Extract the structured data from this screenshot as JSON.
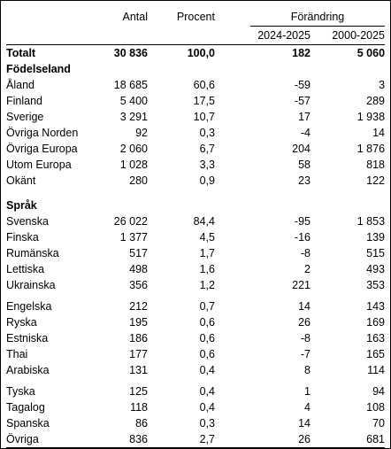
{
  "headers": {
    "antal": "Antal",
    "procent": "Procent",
    "forandring": "Förändring",
    "period1": "2024-2025",
    "period2": "2000-2025"
  },
  "total": {
    "label": "Totalt",
    "antal": "30 836",
    "procent": "100,0",
    "c1": "182",
    "c2": "5 060"
  },
  "sections": [
    {
      "title": "Födelseland",
      "groups": [
        [
          {
            "label": "Åland",
            "antal": "18 685",
            "procent": "60,6",
            "c1": "-59",
            "c2": "3"
          },
          {
            "label": "Finland",
            "antal": "5 400",
            "procent": "17,5",
            "c1": "-57",
            "c2": "289"
          },
          {
            "label": "Sverige",
            "antal": "3 291",
            "procent": "10,7",
            "c1": "17",
            "c2": "1 938"
          },
          {
            "label": "Övriga Norden",
            "antal": "92",
            "procent": "0,3",
            "c1": "-4",
            "c2": "14"
          },
          {
            "label": "Övriga Europa",
            "antal": "2 060",
            "procent": "6,7",
            "c1": "204",
            "c2": "1 876"
          },
          {
            "label": "Utom Europa",
            "antal": "1 028",
            "procent": "3,3",
            "c1": "58",
            "c2": "818"
          },
          {
            "label": "Okänt",
            "antal": "280",
            "procent": "0,9",
            "c1": "23",
            "c2": "122"
          }
        ]
      ]
    },
    {
      "title": "Språk",
      "groups": [
        [
          {
            "label": "Svenska",
            "antal": "26 022",
            "procent": "84,4",
            "c1": "-95",
            "c2": "1 853"
          },
          {
            "label": "Finska",
            "antal": "1 377",
            "procent": "4,5",
            "c1": "-16",
            "c2": "139"
          },
          {
            "label": "Rumänska",
            "antal": "517",
            "procent": "1,7",
            "c1": "-8",
            "c2": "515"
          },
          {
            "label": "Lettiska",
            "antal": "498",
            "procent": "1,6",
            "c1": "2",
            "c2": "493"
          },
          {
            "label": "Ukrainska",
            "antal": "356",
            "procent": "1,2",
            "c1": "221",
            "c2": "353"
          }
        ],
        [
          {
            "label": "Engelska",
            "antal": "212",
            "procent": "0,7",
            "c1": "14",
            "c2": "143"
          },
          {
            "label": "Ryska",
            "antal": "195",
            "procent": "0,6",
            "c1": "26",
            "c2": "169"
          },
          {
            "label": "Estniska",
            "antal": "186",
            "procent": "0,6",
            "c1": "-8",
            "c2": "163"
          },
          {
            "label": "Thai",
            "antal": "177",
            "procent": "0,6",
            "c1": "-7",
            "c2": "165"
          },
          {
            "label": "Arabiska",
            "antal": "131",
            "procent": "0,4",
            "c1": "8",
            "c2": "114"
          }
        ],
        [
          {
            "label": "Tyska",
            "antal": "125",
            "procent": "0,4",
            "c1": "1",
            "c2": "94"
          },
          {
            "label": "Tagalog",
            "antal": "118",
            "procent": "0,4",
            "c1": "4",
            "c2": "108"
          },
          {
            "label": "Spanska",
            "antal": "86",
            "procent": "0,3",
            "c1": "14",
            "c2": "70"
          },
          {
            "label": "Övriga",
            "antal": "836",
            "procent": "2,7",
            "c1": "26",
            "c2": "681"
          }
        ]
      ]
    }
  ]
}
